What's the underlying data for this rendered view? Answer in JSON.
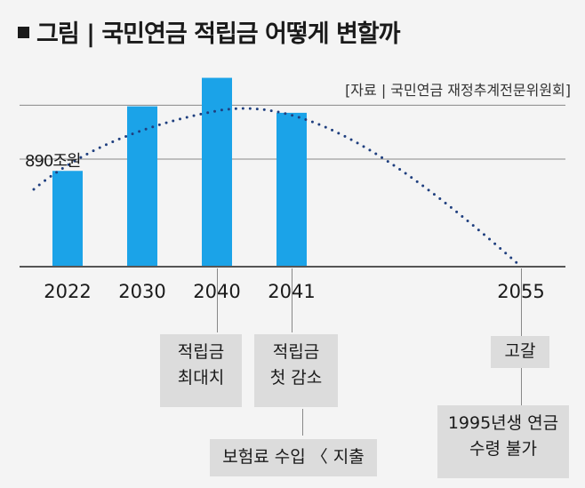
{
  "title": "그림 | 국민연금 적립금 어떻게 변할까",
  "source": "[자료 | 국민연금 재정추계전문위원회]",
  "colors": {
    "bar": "#1ba3e8",
    "dots": "#1f3f7f",
    "grid": "#888888",
    "annotation_bg": "#dcdcdc"
  },
  "chart_data": {
    "type": "bar",
    "categories": [
      "2022",
      "2030",
      "2040",
      "2041",
      "2055"
    ],
    "values": [
      890,
      1490,
      1755,
      1430,
      0
    ],
    "trend_curve": "dotted",
    "data_labels": [
      "890조원"
    ],
    "ylim": [
      0,
      1900
    ],
    "grid": true
  },
  "annotations": {
    "a2040": [
      "적립금",
      "최대치"
    ],
    "a2041": [
      "적립금",
      "첫 감소"
    ],
    "insurance": "보험료 수입 〈 지출",
    "depletion": "고갈",
    "born1995": [
      "1995년생 연금",
      "수령 불가"
    ]
  }
}
